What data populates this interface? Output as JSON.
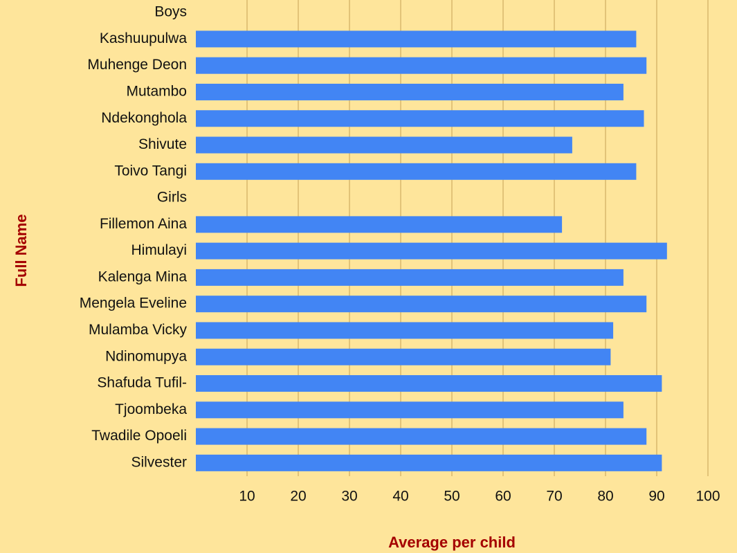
{
  "chart_data": {
    "type": "barh",
    "categories": [
      "Boys",
      "Kashuupulwa",
      "Muhenge Deon",
      "Mutambo",
      "Ndekonghola",
      "Shivute",
      "Toivo Tangi",
      "Girls",
      "Fillemon Aina",
      "Himulayi",
      "Kalenga Mina",
      "Mengela Eveline",
      "Mulamba Vicky",
      "Ndinomupya",
      "Shafuda Tufil-",
      "Tjoombeka",
      "Twadile Opoeli",
      "Silvester"
    ],
    "values": [
      null,
      86,
      88,
      83.5,
      87.5,
      73.5,
      86,
      null,
      71.5,
      92,
      83.5,
      88,
      81.5,
      81,
      91,
      83.5,
      88,
      91
    ],
    "color": "#4285f4",
    "xlabel": "Average per child",
    "ylabel": "Full Name",
    "xlim": [
      0,
      100
    ],
    "xticks": [
      10,
      20,
      30,
      40,
      50,
      60,
      70,
      80,
      90,
      100
    ],
    "grid": true
  }
}
